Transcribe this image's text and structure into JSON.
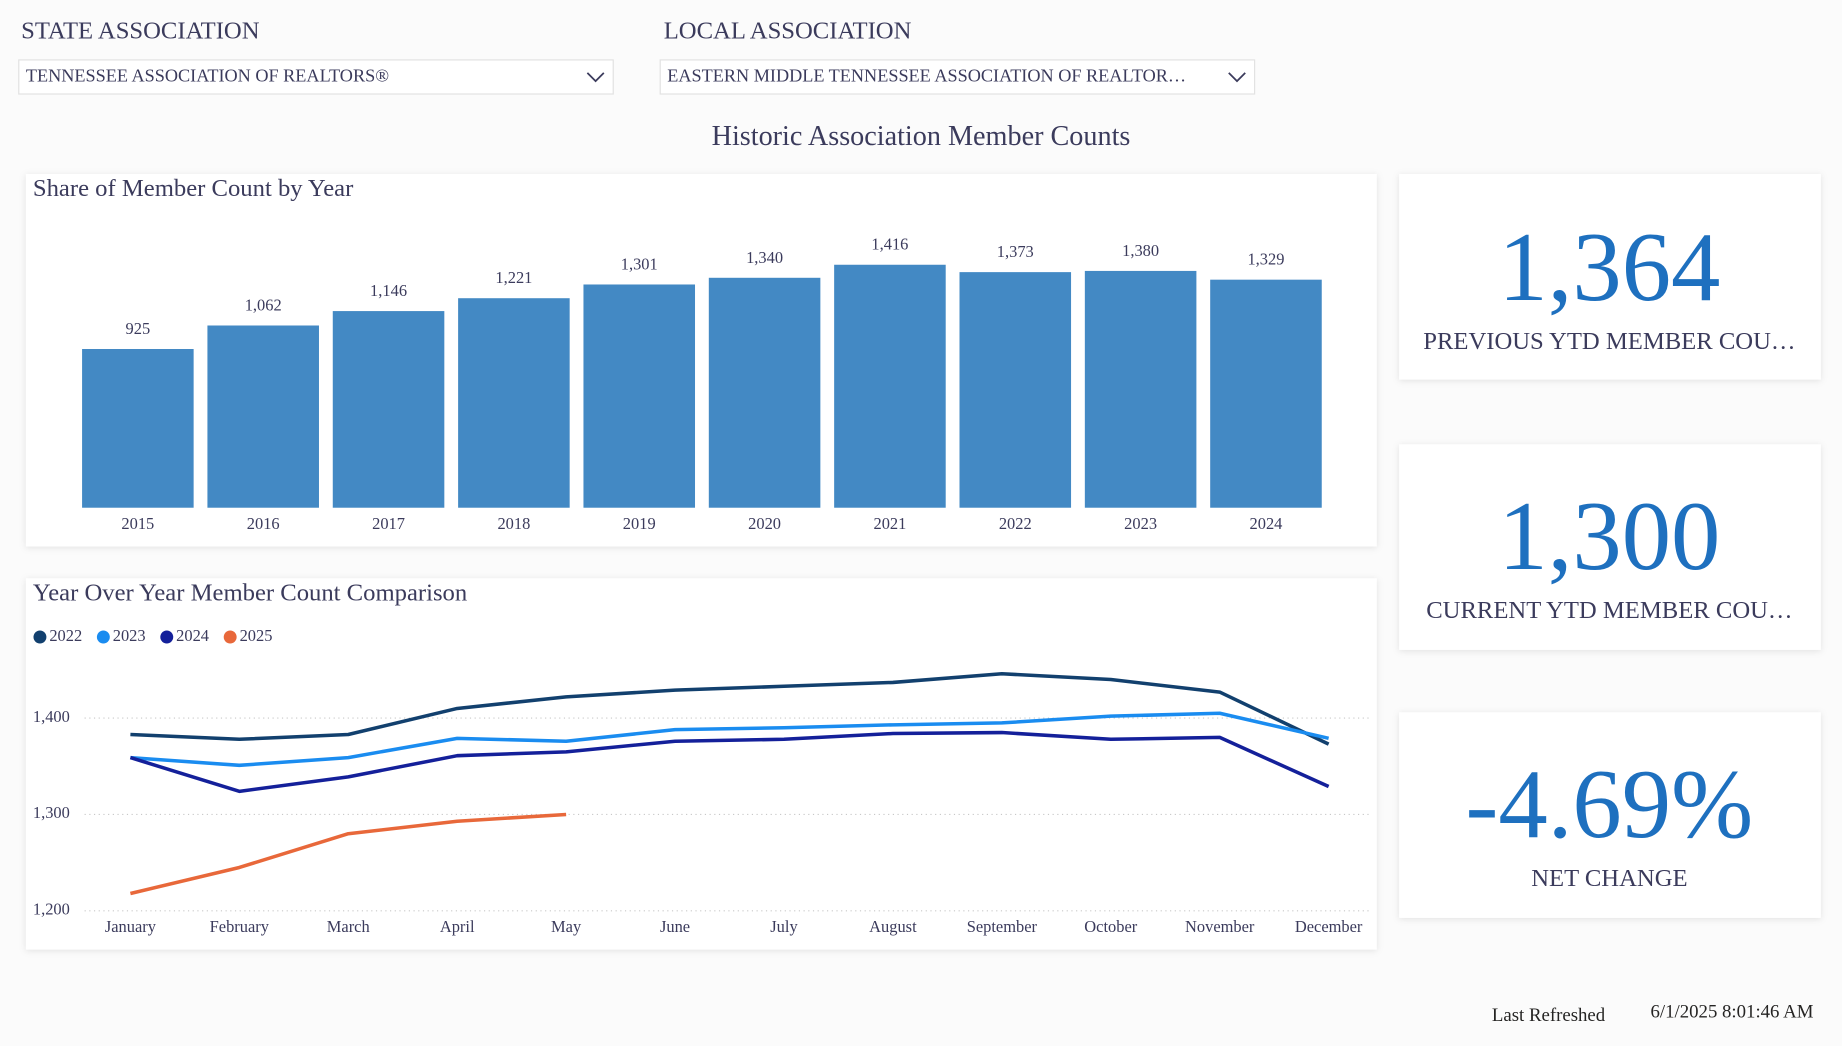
{
  "filters": [
    {
      "label": "STATE ASSOCIATION",
      "selected": "TENNESSEE ASSOCIATION OF REALTORS®"
    },
    {
      "label": "LOCAL ASSOCIATION",
      "selected": "EASTERN MIDDLE TENNESSEE ASSOCIATION OF REALTOR…"
    }
  ],
  "title": "Historic Association Member Counts",
  "chart_data": [
    {
      "type": "bar",
      "title": "Share of Member Count by Year",
      "categories": [
        "2015",
        "2016",
        "2017",
        "2018",
        "2019",
        "2020",
        "2021",
        "2022",
        "2023",
        "2024"
      ],
      "values": [
        925,
        1062,
        1146,
        1221,
        1301,
        1340,
        1416,
        1373,
        1380,
        1329
      ],
      "value_labels": [
        "925",
        "1,062",
        "1,146",
        "1,221",
        "1,301",
        "1,340",
        "1,416",
        "1,373",
        "1,380",
        "1,329"
      ],
      "color": "#4389c4",
      "ylim": [
        0,
        1500
      ]
    },
    {
      "type": "line",
      "title": "Year Over Year Member Count Comparison",
      "categories": [
        "January",
        "February",
        "March",
        "April",
        "May",
        "June",
        "July",
        "August",
        "September",
        "October",
        "November",
        "December"
      ],
      "series": [
        {
          "name": "2022",
          "color": "#12406e",
          "values": [
            1383,
            1378,
            1383,
            1410,
            1422,
            1429,
            1433,
            1437,
            1446,
            1440,
            1427,
            1373
          ]
        },
        {
          "name": "2023",
          "color": "#1a8cf0",
          "values": [
            1359,
            1351,
            1359,
            1379,
            1376,
            1388,
            1390,
            1393,
            1395,
            1402,
            1405,
            1379
          ]
        },
        {
          "name": "2024",
          "color": "#14209a",
          "values": [
            1359,
            1324,
            1339,
            1361,
            1365,
            1376,
            1378,
            1384,
            1385,
            1378,
            1380,
            1329
          ]
        },
        {
          "name": "2025",
          "color": "#e8683a",
          "values": [
            1218,
            1245,
            1280,
            1293,
            1300,
            null,
            null,
            null,
            null,
            null,
            null,
            null
          ]
        }
      ],
      "ylim": [
        1200,
        1450
      ],
      "yticks": [
        {
          "value": 1200,
          "label": "1,200"
        },
        {
          "value": 1300,
          "label": "1,300"
        },
        {
          "value": 1400,
          "label": "1,400"
        }
      ],
      "grid": true
    }
  ],
  "kpis": [
    {
      "value": "1,364",
      "label": "PREVIOUS YTD MEMBER COU…"
    },
    {
      "value": "1,300",
      "label": "CURRENT YTD MEMBER COU…"
    },
    {
      "value": "-4.69%",
      "label": "NET CHANGE"
    }
  ],
  "footer": {
    "label": "Last Refreshed",
    "value": "6/1/2025 8:01:46 AM"
  }
}
